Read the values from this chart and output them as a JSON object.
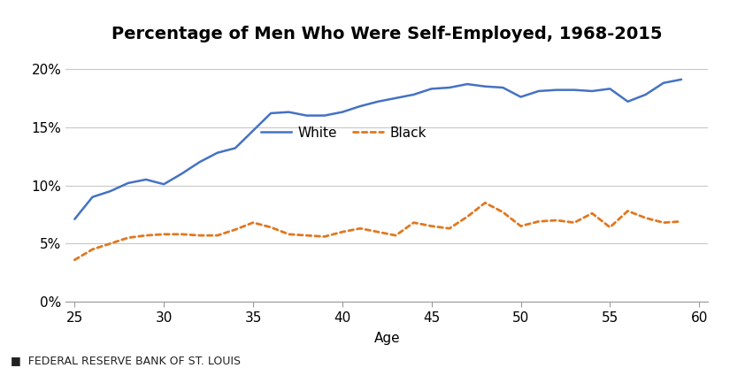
{
  "title": "Percentage of Men Who Were Self-Employed, 1968-2015",
  "xlabel": "Age",
  "footnote": "FEDERAL RESERVE BANK OF ST. LOUIS",
  "white_x": [
    25,
    26,
    27,
    28,
    29,
    30,
    31,
    32,
    33,
    34,
    35,
    36,
    37,
    38,
    39,
    40,
    41,
    42,
    43,
    44,
    45,
    46,
    47,
    48,
    49,
    50,
    51,
    52,
    53,
    54,
    55,
    56,
    57,
    58,
    59
  ],
  "white_y": [
    0.071,
    0.09,
    0.095,
    0.102,
    0.105,
    0.101,
    0.11,
    0.12,
    0.128,
    0.132,
    0.147,
    0.162,
    0.163,
    0.16,
    0.16,
    0.163,
    0.168,
    0.172,
    0.175,
    0.178,
    0.183,
    0.184,
    0.187,
    0.185,
    0.184,
    0.176,
    0.181,
    0.182,
    0.182,
    0.181,
    0.183,
    0.172,
    0.178,
    0.188,
    0.191
  ],
  "black_x": [
    25,
    26,
    27,
    28,
    29,
    30,
    31,
    32,
    33,
    34,
    35,
    36,
    37,
    38,
    39,
    40,
    41,
    42,
    43,
    44,
    45,
    46,
    47,
    48,
    49,
    50,
    51,
    52,
    53,
    54,
    55,
    56,
    57,
    58,
    59
  ],
  "black_y": [
    0.036,
    0.045,
    0.05,
    0.055,
    0.057,
    0.058,
    0.058,
    0.057,
    0.057,
    0.062,
    0.068,
    0.064,
    0.058,
    0.057,
    0.056,
    0.06,
    0.063,
    0.06,
    0.057,
    0.068,
    0.065,
    0.063,
    0.073,
    0.085,
    0.077,
    0.065,
    0.069,
    0.07,
    0.068,
    0.076,
    0.064,
    0.078,
    0.072,
    0.068,
    0.069
  ],
  "white_color": "#4472C4",
  "black_color": "#E07820",
  "grid_color": "#C8C8C8",
  "title_fontsize": 14,
  "label_fontsize": 11,
  "tick_fontsize": 11,
  "footnote_fontsize": 9,
  "xlim": [
    24.5,
    60.5
  ],
  "ylim": [
    0.0,
    0.215
  ],
  "yticks": [
    0.0,
    0.05,
    0.1,
    0.15,
    0.2
  ],
  "xticks": [
    25,
    30,
    35,
    40,
    45,
    50,
    55,
    60
  ]
}
